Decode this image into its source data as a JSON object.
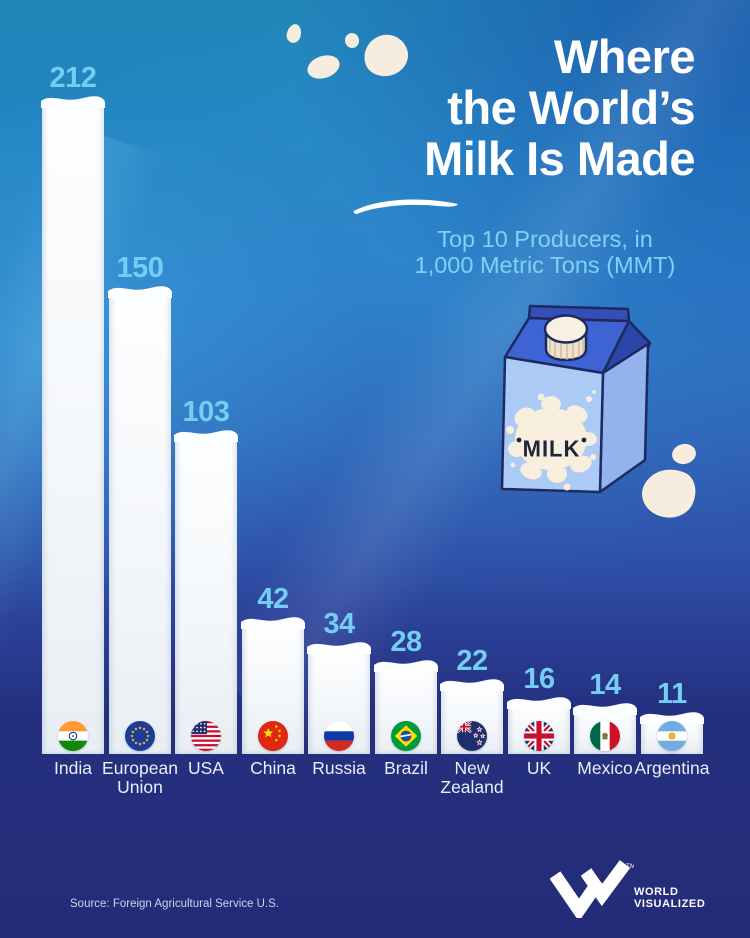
{
  "title": {
    "lines": [
      "Where",
      "the World’s",
      "Milk Is Made"
    ]
  },
  "subtitle": {
    "lines": [
      "Top 10 Producers, in",
      "1,000 Metric Tons (MMT)"
    ]
  },
  "chart_data": {
    "type": "bar",
    "title": "Where the World’s Milk Is Made",
    "subtitle": "Top 10 Producers, in 1,000 Metric Tons (MMT)",
    "unit": "MMT",
    "categories": [
      "India",
      "European Union",
      "USA",
      "China",
      "Russia",
      "Brazil",
      "New Zealand",
      "UK",
      "Mexico",
      "Argentina"
    ],
    "values": [
      212,
      150,
      103,
      42,
      34,
      28,
      22,
      16,
      14,
      11
    ],
    "flags": [
      "india",
      "european-union",
      "usa",
      "china",
      "russia",
      "brazil",
      "new-zealand",
      "uk",
      "mexico",
      "argentina"
    ],
    "ylim": [
      0,
      212
    ],
    "grid": false,
    "legend": false,
    "bar_color": "#ffffff",
    "value_label_color": "#74cdf2",
    "category_label_color": "#e9eef7"
  },
  "carton": {
    "label": "MILK"
  },
  "footer": {
    "source": "Source: Foreign Agricultural Service U.S.",
    "logo_line1": "WORLD",
    "logo_line2": "VISUALIZED",
    "trademark": "TM"
  },
  "colors": {
    "background_top": "#1f84b6",
    "background_bottom": "#232c78",
    "accent_light_blue": "#7fd2f5",
    "bar_white": "#ffffff",
    "cream": "#f6edde",
    "carton_roof": "#3e63d2",
    "carton_face": "#accaf6"
  }
}
